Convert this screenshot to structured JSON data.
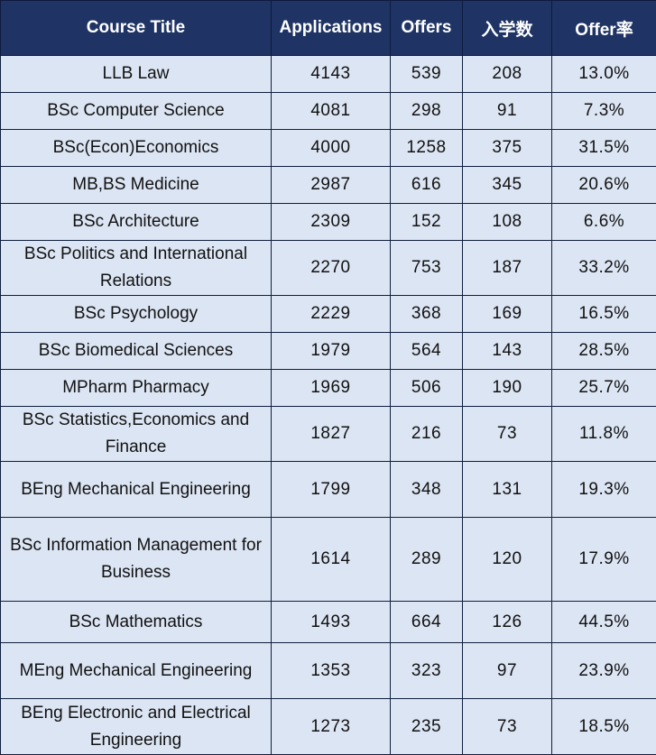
{
  "chart_data": {
    "type": "table",
    "columns": [
      "Course Title",
      "Applications",
      "Offers",
      "入学数",
      "Offer率"
    ],
    "rows": [
      [
        "LLB Law",
        "4143",
        "539",
        "208",
        "13.0%"
      ],
      [
        "BSc Computer Science",
        "4081",
        "298",
        "91",
        "7.3%"
      ],
      [
        "BSc(Econ)Economics",
        "4000",
        "1258",
        "375",
        "31.5%"
      ],
      [
        "MB,BS Medicine",
        "2987",
        "616",
        "345",
        "20.6%"
      ],
      [
        "BSc Architecture",
        "2309",
        "152",
        "108",
        "6.6%"
      ],
      [
        "BSc Politics and International Relations",
        "2270",
        "753",
        "187",
        "33.2%"
      ],
      [
        "BSc Psychology",
        "2229",
        "368",
        "169",
        "16.5%"
      ],
      [
        "BSc Biomedical Sciences",
        "1979",
        "564",
        "143",
        "28.5%"
      ],
      [
        "MPharm Pharmacy",
        "1969",
        "506",
        "190",
        "25.7%"
      ],
      [
        "BSc Statistics,Economics and Finance",
        "1827",
        "216",
        "73",
        "11.8%"
      ],
      [
        "BEng Mechanical Engineering",
        "1799",
        "348",
        "131",
        "19.3%"
      ],
      [
        "BSc Information Management for Business",
        "1614",
        "289",
        "120",
        "17.9%"
      ],
      [
        "BSc Mathematics",
        "1493",
        "664",
        "126",
        "44.5%"
      ],
      [
        "MEng Mechanical Engineering",
        "1353",
        "323",
        "97",
        "23.9%"
      ],
      [
        "BEng Electronic and Electrical Engineering",
        "1273",
        "235",
        "73",
        "18.5%"
      ]
    ]
  }
}
